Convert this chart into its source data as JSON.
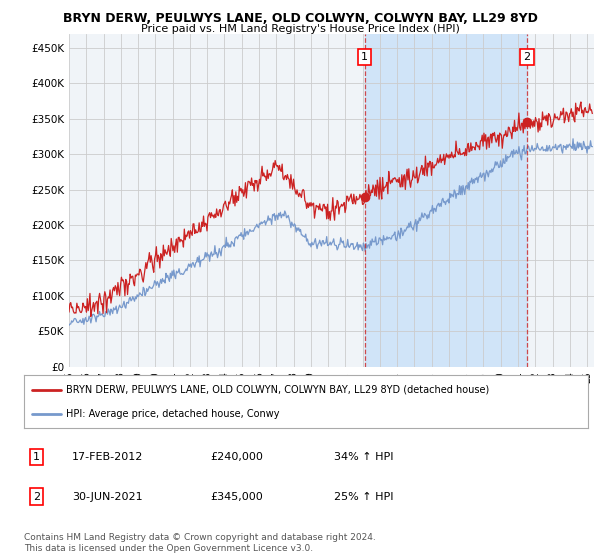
{
  "title": "BRYN DERW, PEULWYS LANE, OLD COLWYN, COLWYN BAY, LL29 8YD",
  "subtitle": "Price paid vs. HM Land Registry's House Price Index (HPI)",
  "ylabel_ticks": [
    "£0",
    "£50K",
    "£100K",
    "£150K",
    "£200K",
    "£250K",
    "£300K",
    "£350K",
    "£400K",
    "£450K"
  ],
  "ytick_values": [
    0,
    50000,
    100000,
    150000,
    200000,
    250000,
    300000,
    350000,
    400000,
    450000
  ],
  "ylim": [
    0,
    470000
  ],
  "xlim_start": 1995.0,
  "xlim_end": 2025.4,
  "background_color": "#e8f0f8",
  "plot_bg_color": "#f0f4f8",
  "shade_color": "#d0e4f8",
  "red_color": "#cc2222",
  "blue_color": "#7799cc",
  "grid_color": "#cccccc",
  "marker1_x": 2012.12,
  "marker1_y": 240000,
  "marker2_x": 2021.5,
  "marker2_y": 345000,
  "legend_line1": "BRYN DERW, PEULWYS LANE, OLD COLWYN, COLWYN BAY, LL29 8YD (detached house)",
  "legend_line2": "HPI: Average price, detached house, Conwy",
  "ann1_label": "1",
  "ann1_date": "17-FEB-2012",
  "ann1_price": "£240,000",
  "ann1_hpi": "34% ↑ HPI",
  "ann2_label": "2",
  "ann2_date": "30-JUN-2021",
  "ann2_price": "£345,000",
  "ann2_hpi": "25% ↑ HPI",
  "footer": "Contains HM Land Registry data © Crown copyright and database right 2024.\nThis data is licensed under the Open Government Licence v3.0."
}
